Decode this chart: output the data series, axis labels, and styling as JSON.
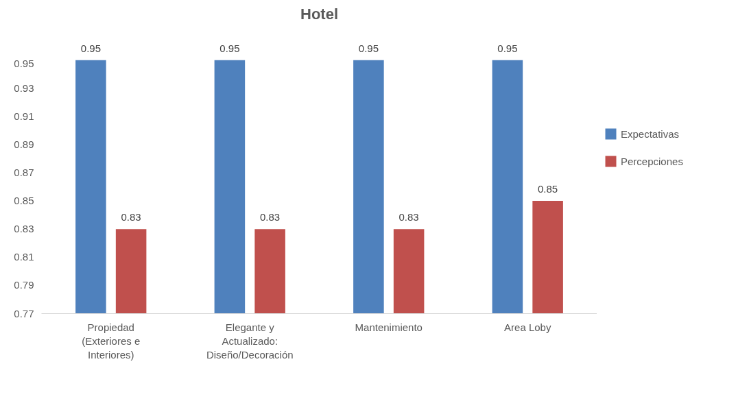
{
  "chart_data": {
    "type": "bar",
    "title": "Hotel",
    "categories": [
      "Propiedad (Exteriores e Interiores)",
      "Elegante y Actualizado: Diseño/Decoración",
      "Mantenimiento",
      "Area Loby"
    ],
    "series": [
      {
        "name": "Expectativas",
        "color": "#4f81bd",
        "values": [
          0.95,
          0.95,
          0.95,
          0.95
        ]
      },
      {
        "name": "Percepciones",
        "color": "#c0504d",
        "values": [
          0.83,
          0.83,
          0.83,
          0.85
        ]
      }
    ],
    "ylim": [
      0.77,
      0.95
    ],
    "yticks": [
      0.77,
      0.79,
      0.81,
      0.83,
      0.85,
      0.87,
      0.89,
      0.91,
      0.93,
      0.95
    ],
    "data_labels": true,
    "grid": false,
    "legend": "right"
  }
}
